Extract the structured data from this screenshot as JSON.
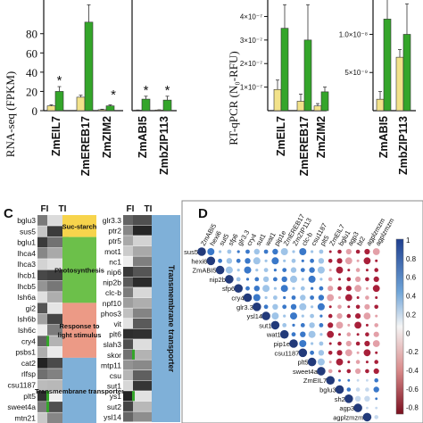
{
  "colors": {
    "yellow": "#f2e28a",
    "green": "#34a52a",
    "red": "#9b1b1b",
    "blue": "#2c6bc8"
  },
  "chart_data": [
    {
      "type": "bar",
      "ylabel": "RNA-seq (FPKM)",
      "yticks": [
        "0",
        "20",
        "40",
        "60",
        "80"
      ],
      "ylim": [
        0,
        115
      ],
      "groups": [
        {
          "categories": [
            "ZmEIL7",
            "ZmEREB17",
            "ZmZIM2"
          ],
          "series": [
            {
              "values": [
                5,
                14,
                1
              ]
            },
            {
              "values": [
                20,
                92,
                5
              ]
            }
          ],
          "errors": [
            [
              1,
              2,
              0.5
            ],
            [
              5,
              18,
              1
            ]
          ],
          "stars": [
            "",
            "",
            "*"
          ],
          "stars2": [
            "*",
            "*",
            ""
          ]
        },
        {
          "categories": [
            "ZmABI5",
            "ZmbZIP113"
          ],
          "series": [
            {
              "values": [
                0.5,
                0.7
              ]
            },
            {
              "values": [
                12,
                11
              ]
            }
          ],
          "errors": [
            [
              0.2,
              0.2
            ],
            [
              3,
              4
            ]
          ],
          "stars2": [
            "*",
            "*"
          ]
        }
      ]
    },
    {
      "type": "bar",
      "ylabel": "RT-qPCR (N₀-RFU)",
      "yticks": [
        "1×10⁻⁷",
        "2×10⁻⁷",
        "3×10⁻⁷",
        "4×10⁻⁷"
      ],
      "categories": [
        "ZmEIL7",
        "ZmEREB17",
        "ZmZIM2"
      ],
      "series": [
        {
          "values": [
            0.9,
            0.4,
            0.2
          ]
        },
        {
          "values": [
            3.5,
            3.0,
            0.8
          ]
        }
      ],
      "errors": [
        [
          0.4,
          0.3,
          0.1
        ],
        [
          1.0,
          1.5,
          0.2
        ]
      ]
    },
    {
      "type": "bar",
      "yticks": [
        "1.0×10⁻⁸",
        "5×10⁻⁹"
      ],
      "categories": [
        "ZmABI5",
        "ZmbZIP113"
      ],
      "series": [
        {
          "values": [
            0.15,
            0.7
          ]
        },
        {
          "values": [
            1.2,
            1.0
          ]
        }
      ],
      "errors": [
        [
          0.1,
          0.1
        ],
        [
          0.3,
          0.4
        ]
      ]
    },
    {
      "type": "heatmap",
      "panel": "C",
      "col_headers": [
        "FI",
        "TI"
      ],
      "left_genes": [
        "bglu3",
        "sus5",
        "bglu1",
        "lhca4",
        "lhca3",
        "lhcb1",
        "lhcb5",
        "lsh6a",
        "gi2",
        "lsh6b",
        "lsh6c",
        "cry4",
        "psbs1",
        "cat2",
        "rlfsp",
        "csu1187",
        "plt5",
        "sweet4a",
        "mtn21"
      ],
      "right_genes": [
        "glr3.3",
        "ptr2",
        "ptr5",
        "mot1",
        "nc1",
        "nip6",
        "nip2b",
        "clc-b",
        "npf10",
        "phos3",
        "vit",
        "plt6",
        "slah3",
        "skor",
        "mtp11",
        "csu",
        "sut1",
        "ys1",
        "sut2",
        "ysl14"
      ],
      "categories_left": [
        "Suc-starch",
        "Photosynthesis",
        "Response to light stimulus",
        "Transmembrane transporter"
      ],
      "category_right": "Transmembrane transporter"
    },
    {
      "type": "heatmap",
      "panel": "D",
      "row_labels": [
        "sus5",
        "hexi6",
        "ZmABI5",
        "nip2b",
        "sfp6",
        "cry4",
        "glr3.3",
        "ysl14",
        "sut1",
        "wat1",
        "pip1e",
        "csu1187",
        "plt5",
        "sweet4a",
        "ZmEIL7",
        "bglu3",
        "sh2",
        "agp3",
        "agplzmzm"
      ],
      "col_labels": [
        "ZmABI5",
        "hexi6",
        "sut5",
        "sfp6",
        "glr3.3",
        "cry4",
        "sut1",
        "wat1",
        "pip1e",
        "ZmEREB17",
        "ZmZIP113",
        "clc-b",
        "csu1187",
        "plt5",
        "ZmEIL7",
        "bglu1",
        "agp3",
        "bt2",
        "agplzmzm",
        "agplzmzm"
      ],
      "colorbar_ticks": [
        "1",
        "0.8",
        "0.6",
        "0.4",
        "0.2",
        "0",
        "-0.2",
        "-0.4",
        "-0.6",
        "-0.8"
      ]
    }
  ],
  "labels": {
    "panel_c": "C",
    "panel_d": "D"
  }
}
